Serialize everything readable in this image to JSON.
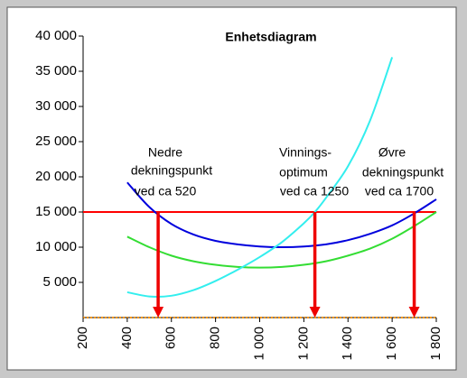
{
  "chart_data": {
    "type": "line",
    "title": "Enhetsdiagram",
    "xlim": [
      200,
      1800
    ],
    "ylim": [
      0,
      40000
    ],
    "xticks": [
      200,
      400,
      600,
      800,
      {
        "value": 1000,
        "label": "1 000"
      },
      {
        "value": 1200,
        "label": "1 200"
      },
      {
        "value": 1400,
        "label": "1 400"
      },
      {
        "value": 1600,
        "label": "1 600"
      },
      {
        "value": 1800,
        "label": "1 800"
      }
    ],
    "yticks": [
      {
        "value": 5000,
        "label": "5 000"
      },
      {
        "value": 10000,
        "label": "10 000"
      },
      {
        "value": 15000,
        "label": "15 000"
      },
      {
        "value": 20000,
        "label": "20 000"
      },
      {
        "value": 25000,
        "label": "25 000"
      },
      {
        "value": 30000,
        "label": "30 000"
      },
      {
        "value": 35000,
        "label": "35 000"
      },
      {
        "value": 40000,
        "label": "40 000"
      }
    ],
    "series": [
      {
        "color": "#ff0000",
        "x": [
          200,
          1800
        ],
        "values": [
          15000,
          15000
        ]
      },
      {
        "color": "#0000dd",
        "x": [
          400,
          500,
          600,
          700,
          800,
          900,
          1000,
          1100,
          1200,
          1300,
          1400,
          1500,
          1600,
          1700,
          1800
        ],
        "values": [
          19200,
          15700,
          13300,
          11800,
          10900,
          10400,
          10100,
          10000,
          10100,
          10400,
          11000,
          11900,
          13100,
          14800,
          16800
        ]
      },
      {
        "color": "#33dd33",
        "x": [
          400,
          500,
          600,
          700,
          800,
          900,
          1000,
          1100,
          1200,
          1300,
          1400,
          1500,
          1600,
          1700,
          1800
        ],
        "values": [
          11500,
          10000,
          8800,
          8000,
          7500,
          7200,
          7100,
          7200,
          7500,
          8000,
          8800,
          9800,
          11200,
          13000,
          15000
        ]
      },
      {
        "color": "#33eeee",
        "x": [
          400,
          500,
          600,
          700,
          800,
          900,
          1000,
          1100,
          1200,
          1250,
          1300,
          1400,
          1500,
          1600
        ],
        "values": [
          3600,
          3000,
          3100,
          3900,
          5200,
          6800,
          8600,
          10700,
          13400,
          15000,
          17000,
          21500,
          28000,
          37000
        ]
      }
    ],
    "arrows": [
      {
        "x": 540,
        "y": 15000
      },
      {
        "x": 1250,
        "y": 15000
      },
      {
        "x": 1700,
        "y": 15000
      }
    ],
    "annotations": [
      {
        "lines": [
          "Nedre",
          "dekningspunkt",
          "ved ca 520"
        ]
      },
      {
        "lines": [
          "Vinnings-",
          "optimum",
          "ved ca 1250"
        ]
      },
      {
        "lines": [
          "Øvre",
          "dekningspunkt",
          "ved ca 1700"
        ]
      }
    ]
  }
}
